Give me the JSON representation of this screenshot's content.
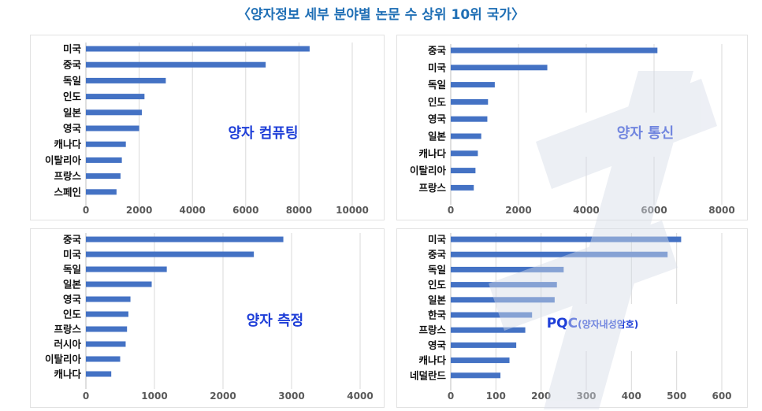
{
  "page_title": "〈양자정보 세부 분야별 논문 수 상위 10위 국가〉",
  "chart_data": [
    {
      "type": "bar",
      "orientation": "horizontal",
      "title": "양자 컴퓨팅",
      "categories": [
        "미국",
        "중국",
        "독일",
        "인도",
        "일본",
        "영국",
        "캐나다",
        "이탈리아",
        "프랑스",
        "스페인"
      ],
      "values": [
        8400,
        6750,
        3000,
        2200,
        2100,
        2000,
        1500,
        1350,
        1300,
        1150
      ],
      "xlim": [
        0,
        10000
      ],
      "xticks": [
        0,
        2000,
        4000,
        6000,
        8000,
        10000
      ],
      "grid": true,
      "color": "#4472c4"
    },
    {
      "type": "bar",
      "orientation": "horizontal",
      "title": "양자 통신",
      "categories": [
        "중국",
        "미국",
        "독일",
        "인도",
        "영국",
        "일본",
        "캐나다",
        "이탈리아",
        "프랑스"
      ],
      "values": [
        6100,
        2850,
        1300,
        1100,
        1080,
        900,
        800,
        730,
        680
      ],
      "xlim": [
        0,
        8000
      ],
      "xticks": [
        0,
        2000,
        4000,
        6000,
        8000
      ],
      "grid": true,
      "color": "#4472c4"
    },
    {
      "type": "bar",
      "orientation": "horizontal",
      "title": "양자 측정",
      "categories": [
        "중국",
        "미국",
        "독일",
        "일본",
        "영국",
        "인도",
        "프랑스",
        "러시아",
        "이탈리아",
        "캐나다"
      ],
      "values": [
        2880,
        2450,
        1180,
        960,
        650,
        620,
        600,
        580,
        500,
        370
      ],
      "xlim": [
        0,
        4000
      ],
      "xticks": [
        0,
        1000,
        2000,
        3000,
        4000
      ],
      "grid": true,
      "color": "#4472c4"
    },
    {
      "type": "bar",
      "orientation": "horizontal",
      "title": "PQC",
      "title_suffix": "(양자내성암호)",
      "categories": [
        "미국",
        "중국",
        "독일",
        "인도",
        "일본",
        "한국",
        "프랑스",
        "영국",
        "캐나다",
        "네덜란드"
      ],
      "values": [
        510,
        480,
        250,
        235,
        230,
        180,
        165,
        145,
        130,
        110
      ],
      "xlim": [
        0,
        600
      ],
      "xticks": [
        0,
        100,
        200,
        300,
        400,
        500,
        600
      ],
      "grid": true,
      "color": "#4472c4"
    }
  ]
}
